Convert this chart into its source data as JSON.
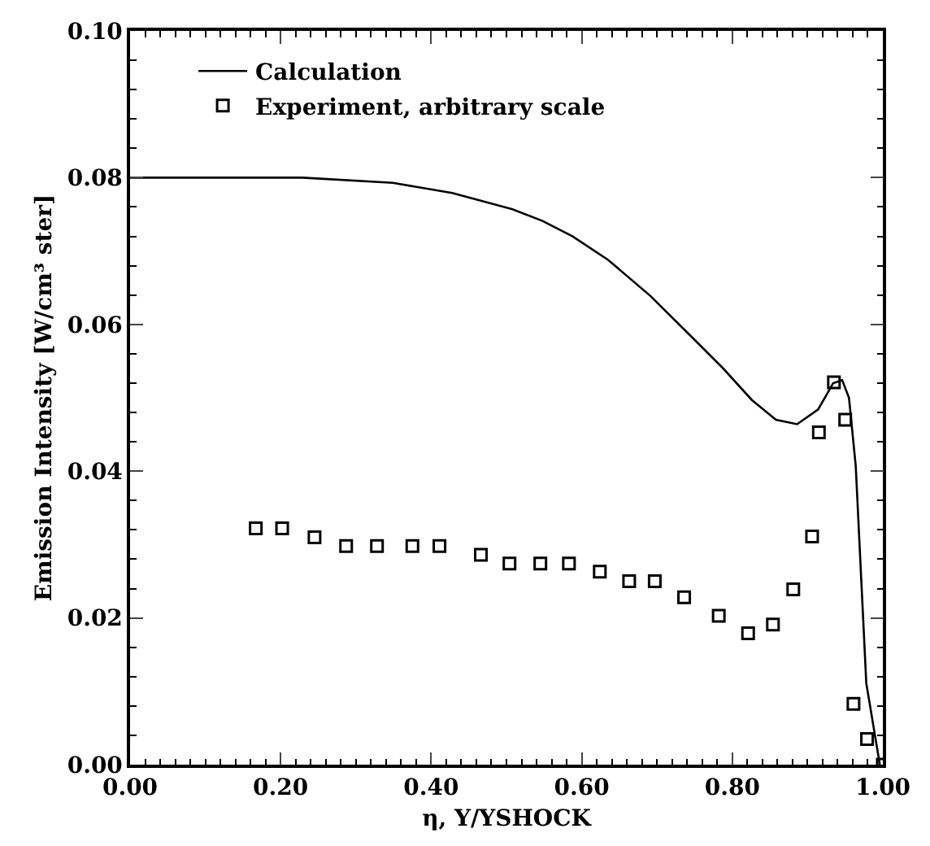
{
  "chart_data": {
    "type": "line",
    "xlabel": "η, Y/YSHOCK",
    "ylabel": "Emission Intensity [W/cm³ ster]",
    "xlim": [
      0,
      1
    ],
    "xticks": [
      {
        "value": 0,
        "label": "0.00"
      },
      {
        "value": 0.2,
        "label": "0.20"
      },
      {
        "value": 0.4,
        "label": "0.40"
      },
      {
        "value": 0.6,
        "label": "0.60"
      },
      {
        "value": 0.8,
        "label": "0.80"
      },
      {
        "value": 1,
        "label": "1.00"
      }
    ],
    "ylim": [
      0,
      0.1
    ],
    "yticks": [
      {
        "value": 0,
        "label": "0.00"
      },
      {
        "value": 0.02,
        "label": "0.02"
      },
      {
        "value": 0.04,
        "label": "0.04"
      },
      {
        "value": 0.06,
        "label": "0.06"
      },
      {
        "value": 0.08,
        "label": "0.08"
      },
      {
        "value": 0.1,
        "label": "0.10"
      }
    ],
    "grid": false,
    "legend": "top left",
    "series": [
      {
        "name": "Calculation",
        "color": "#000000",
        "marker": "none",
        "line_style": "solid",
        "x": [
          0,
          0.1,
          0.229,
          0.349,
          0.428,
          0.508,
          0.548,
          0.588,
          0.635,
          0.691,
          0.747,
          0.787,
          0.826,
          0.858,
          0.886,
          0.914,
          0.934,
          0.946,
          0.955,
          0.964,
          0.978,
          0.996
        ],
        "values": [
          0.08,
          0.08,
          0.08,
          0.0793,
          0.0779,
          0.0757,
          0.0741,
          0.072,
          0.0688,
          0.0639,
          0.0582,
          0.0541,
          0.0497,
          0.047,
          0.0464,
          0.0484,
          0.052,
          0.0524,
          0.05,
          0.0407,
          0.0111,
          0
        ]
      },
      {
        "name": "Experiment, arbitrary scale",
        "type": "scatter",
        "color": "#000000",
        "marker": "square",
        "x": [
          0.167,
          0.202,
          0.245,
          0.287,
          0.328,
          0.375,
          0.411,
          0.466,
          0.504,
          0.545,
          0.583,
          0.624,
          0.663,
          0.697,
          0.736,
          0.782,
          0.821,
          0.854,
          0.881,
          0.906,
          0.915,
          0.935,
          0.95,
          0.961,
          0.979,
          1.0
        ],
        "values": [
          0.0322,
          0.0322,
          0.031,
          0.0298,
          0.0298,
          0.0298,
          0.0298,
          0.0286,
          0.0274,
          0.0274,
          0.0274,
          0.0263,
          0.025,
          0.025,
          0.0228,
          0.0203,
          0.0179,
          0.0191,
          0.0239,
          0.0311,
          0.0453,
          0.0521,
          0.047,
          0.0083,
          0.0035,
          0
        ]
      }
    ]
  }
}
